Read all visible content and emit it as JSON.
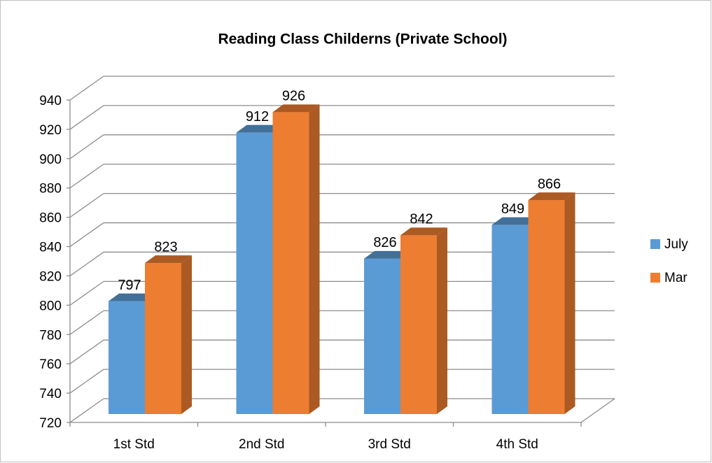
{
  "chart_data": {
    "type": "bar",
    "title": "Reading Class Childerns (Private School)",
    "categories": [
      "1st Std",
      "2nd Std",
      "3rd Std",
      "4th Std"
    ],
    "series": [
      {
        "name": "July",
        "color": "#5b9bd5",
        "values": [
          797,
          912,
          826,
          849
        ]
      },
      {
        "name": "Mar",
        "color": "#ed7d31",
        "values": [
          823,
          926,
          842,
          866
        ]
      }
    ],
    "ylim": [
      720,
      940
    ],
    "yticks": [
      720,
      740,
      760,
      780,
      800,
      820,
      840,
      860,
      880,
      900,
      920,
      940
    ],
    "grid": true,
    "legend": "right"
  }
}
